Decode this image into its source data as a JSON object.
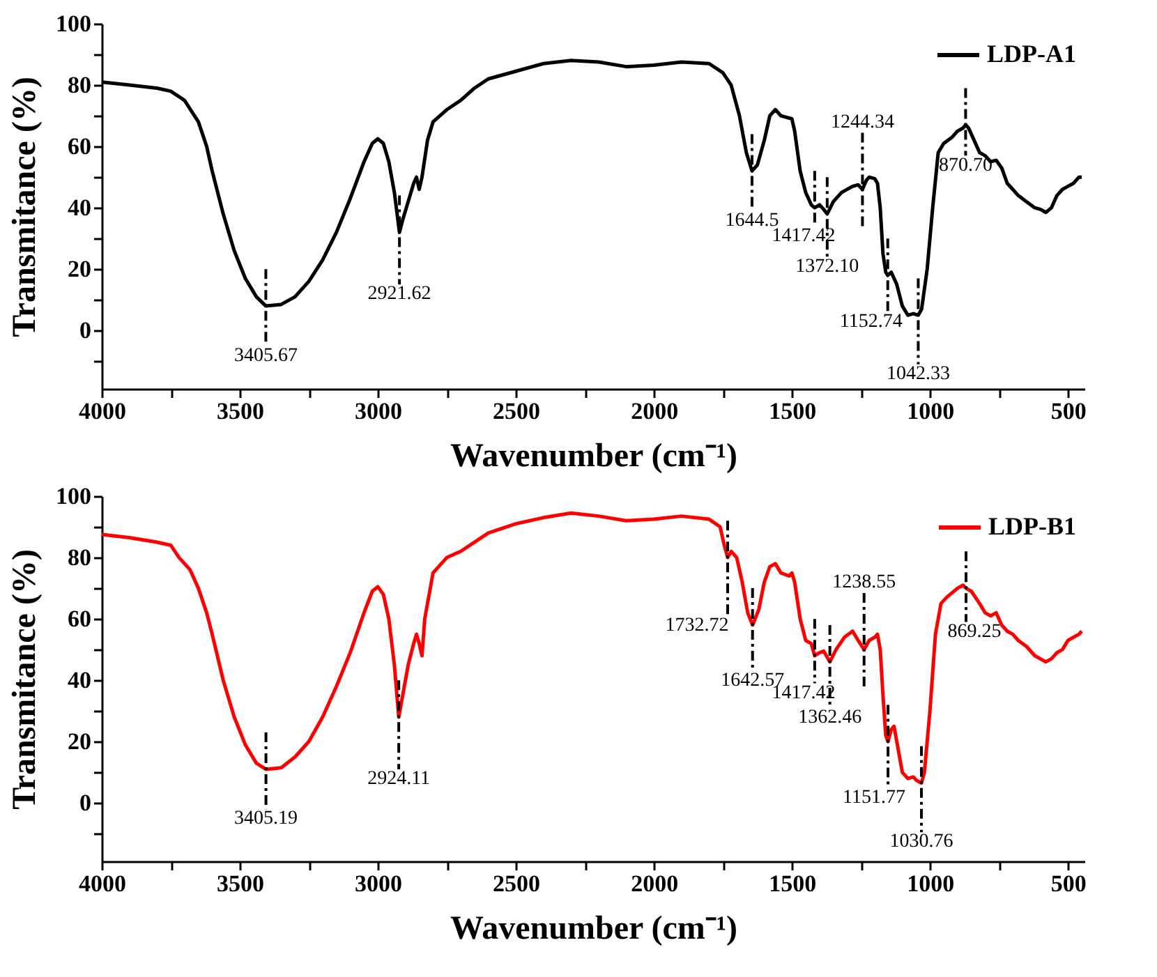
{
  "chart_data": [
    {
      "type": "line",
      "xlabel": "Wavenumber (cm⁻¹)",
      "ylabel": "Transmitance (%)",
      "legend": "top right",
      "grid": false,
      "line_style": "solid",
      "marker": "none",
      "xlim": [
        4000,
        440
      ],
      "ylim": [
        -19,
        100
      ],
      "xticks": [
        4000,
        {
          "value": 3750,
          "label": null
        },
        3500,
        {
          "value": 3250,
          "label": null
        },
        3000,
        {
          "value": 2750,
          "label": null
        },
        2500,
        {
          "value": 2250,
          "label": null
        },
        2000,
        {
          "value": 1750,
          "label": null
        },
        1500,
        {
          "value": 1250,
          "label": null
        },
        1000,
        {
          "value": 750,
          "label": null
        },
        500
      ],
      "yticks": [
        {
          "value": -10,
          "label": null
        },
        0,
        {
          "value": 10,
          "label": null
        },
        20,
        {
          "value": 30,
          "label": null
        },
        40,
        {
          "value": 50,
          "label": null
        },
        60,
        {
          "value": 70,
          "label": null
        },
        80,
        {
          "value": 90,
          "label": null
        },
        100
      ],
      "series": [
        {
          "name": "LDP-A1",
          "color": "#000000",
          "x": [
            4000,
            3900,
            3800,
            3750,
            3700,
            3650,
            3620,
            3600,
            3560,
            3520,
            3480,
            3440,
            3405.67,
            3350,
            3300,
            3250,
            3200,
            3150,
            3100,
            3050,
            3020,
            3000,
            2980,
            2960,
            2940,
            2921.62,
            2910,
            2890,
            2870,
            2860,
            2850,
            2840,
            2820,
            2800,
            2750,
            2700,
            2650,
            2600,
            2500,
            2400,
            2300,
            2200,
            2100,
            2000,
            1900,
            1800,
            1750,
            1720,
            1690,
            1665,
            1644.5,
            1625,
            1600,
            1580,
            1560,
            1540,
            1500,
            1490,
            1470,
            1450,
            1430,
            1417.42,
            1400,
            1385,
            1372.1,
            1350,
            1320,
            1280,
            1260,
            1244.34,
            1230,
            1220,
            1200,
            1190,
            1180,
            1170,
            1160,
            1152.74,
            1140,
            1120,
            1100,
            1080,
            1060,
            1042.33,
            1030,
            1010,
            990,
            970,
            950,
            920,
            900,
            880,
            870.7,
            860,
            840,
            820,
            800,
            780,
            760,
            740,
            720,
            700,
            680,
            650,
            620,
            600,
            580,
            560,
            540,
            520,
            500,
            480,
            460,
            450
          ],
          "values": [
            81,
            80,
            79,
            78,
            75,
            68,
            60,
            52,
            38,
            26,
            17,
            11,
            8,
            8.5,
            11,
            16,
            23,
            32,
            43,
            55,
            61,
            62.5,
            61,
            55,
            45,
            32,
            36,
            42,
            48,
            50,
            46,
            50,
            62,
            68,
            72,
            75,
            79,
            82,
            84.5,
            87,
            88,
            87.5,
            86,
            86.5,
            87.5,
            87,
            84,
            80,
            70,
            58,
            52,
            54,
            62,
            70,
            72,
            70,
            69,
            65,
            52,
            45,
            41,
            40,
            41,
            39.5,
            38,
            42,
            45,
            47,
            47.5,
            46,
            49,
            50,
            49.5,
            48,
            40,
            25,
            19,
            18,
            19,
            15,
            8,
            5,
            5.5,
            5,
            7,
            20,
            40,
            58,
            61,
            63,
            65,
            66,
            67,
            66,
            62,
            58,
            57,
            55,
            55.5,
            53,
            48,
            46,
            44,
            42,
            40,
            39.5,
            38.5,
            40,
            44,
            46,
            47,
            48,
            50,
            50
          ]
        }
      ],
      "annotations": [
        {
          "text": "3405.67",
          "x": 3405.67,
          "y": 8
        },
        {
          "text": "2921.62",
          "x": 2921.62,
          "y": 32
        },
        {
          "text": "1644.5",
          "x": 1644.5,
          "y": 52
        },
        {
          "text": "1417.42",
          "x": 1417.42,
          "y": 40
        },
        {
          "text": "1372.10",
          "x": 1372.1,
          "y": 38
        },
        {
          "text": "1244.34",
          "x": 1244.34,
          "y": 46
        },
        {
          "text": "1152.74",
          "x": 1152.74,
          "y": 18
        },
        {
          "text": "1042.33",
          "x": 1042.33,
          "y": 5
        },
        {
          "text": "870.70",
          "x": 870.7,
          "y": 67
        }
      ]
    },
    {
      "type": "line",
      "xlabel": "Wavenumber (cm⁻¹)",
      "ylabel": "Transmitance (%)",
      "legend": "top right",
      "grid": false,
      "line_style": "solid",
      "marker": "none",
      "xlim": [
        4000,
        440
      ],
      "ylim": [
        -19,
        100
      ],
      "xticks": [
        4000,
        {
          "value": 3750,
          "label": null
        },
        3500,
        {
          "value": 3250,
          "label": null
        },
        3000,
        {
          "value": 2750,
          "label": null
        },
        2500,
        {
          "value": 2250,
          "label": null
        },
        2000,
        {
          "value": 1750,
          "label": null
        },
        1500,
        {
          "value": 1250,
          "label": null
        },
        1000,
        {
          "value": 750,
          "label": null
        },
        500
      ],
      "yticks": [
        {
          "value": -10,
          "label": null
        },
        0,
        {
          "value": 10,
          "label": null
        },
        20,
        {
          "value": 30,
          "label": null
        },
        40,
        {
          "value": 50,
          "label": null
        },
        60,
        {
          "value": 70,
          "label": null
        },
        80,
        {
          "value": 90,
          "label": null
        },
        100
      ],
      "series": [
        {
          "name": "LDP-B1",
          "color": "#ff0000",
          "x": [
            4000,
            3900,
            3800,
            3750,
            3720,
            3680,
            3650,
            3620,
            3600,
            3560,
            3520,
            3480,
            3440,
            3405.19,
            3350,
            3300,
            3250,
            3200,
            3150,
            3100,
            3050,
            3020,
            3000,
            2980,
            2960,
            2940,
            2924.11,
            2910,
            2890,
            2870,
            2860,
            2850,
            2840,
            2830,
            2800,
            2750,
            2700,
            2650,
            2600,
            2500,
            2400,
            2300,
            2200,
            2100,
            2000,
            1900,
            1800,
            1760,
            1745,
            1732.72,
            1720,
            1700,
            1680,
            1660,
            1642.57,
            1620,
            1600,
            1580,
            1560,
            1540,
            1510,
            1500,
            1490,
            1470,
            1450,
            1430,
            1417.42,
            1400,
            1385,
            1362.46,
            1340,
            1310,
            1280,
            1260,
            1238.55,
            1220,
            1200,
            1190,
            1180,
            1170,
            1160,
            1151.77,
            1140,
            1130,
            1120,
            1100,
            1080,
            1060,
            1050,
            1030.76,
            1020,
            1000,
            980,
            960,
            940,
            900,
            880,
            869.25,
            850,
            820,
            800,
            780,
            760,
            740,
            720,
            700,
            680,
            650,
            620,
            600,
            580,
            560,
            540,
            520,
            500,
            480,
            460,
            450
          ],
          "values": [
            87.5,
            86.5,
            85,
            84,
            80,
            76,
            70,
            62,
            55,
            40,
            28,
            19,
            13,
            11,
            11.5,
            15,
            20,
            28,
            38,
            49,
            62,
            69,
            70.5,
            68,
            60,
            45,
            28,
            35,
            45,
            52,
            55,
            52,
            48,
            60,
            75,
            80,
            82,
            85,
            88,
            91,
            93,
            94.5,
            93.5,
            92,
            92.5,
            93.5,
            92.5,
            90,
            84,
            80,
            82,
            80,
            72,
            62,
            58,
            63,
            72,
            77,
            78,
            75,
            74,
            75,
            72,
            60,
            53,
            52,
            48,
            49,
            49.5,
            46,
            50,
            54,
            56,
            53,
            50,
            53,
            54,
            55,
            50,
            35,
            22,
            20,
            24,
            25,
            20,
            10,
            8,
            8.5,
            7.5,
            6.5,
            10,
            30,
            55,
            65,
            67,
            70,
            71,
            70,
            69,
            65,
            62,
            61,
            62,
            58,
            56,
            55,
            53,
            51,
            48,
            47,
            46,
            47,
            49,
            50,
            53,
            54,
            55,
            56
          ]
        }
      ],
      "annotations": [
        {
          "text": "3405.19",
          "x": 3405.19,
          "y": 11
        },
        {
          "text": "2924.11",
          "x": 2924.11,
          "y": 28
        },
        {
          "text": "1732.72",
          "x": 1732.72,
          "y": 80
        },
        {
          "text": "1642.57",
          "x": 1642.57,
          "y": 58
        },
        {
          "text": "1417.42",
          "x": 1417.42,
          "y": 48
        },
        {
          "text": "1362.46",
          "x": 1362.46,
          "y": 46
        },
        {
          "text": "1238.55",
          "x": 1238.55,
          "y": 50
        },
        {
          "text": "1151.77",
          "x": 1151.77,
          "y": 20
        },
        {
          "text": "1030.76",
          "x": 1030.76,
          "y": 6.5
        },
        {
          "text": "869.25",
          "x": 869.25,
          "y": 70
        }
      ]
    }
  ]
}
